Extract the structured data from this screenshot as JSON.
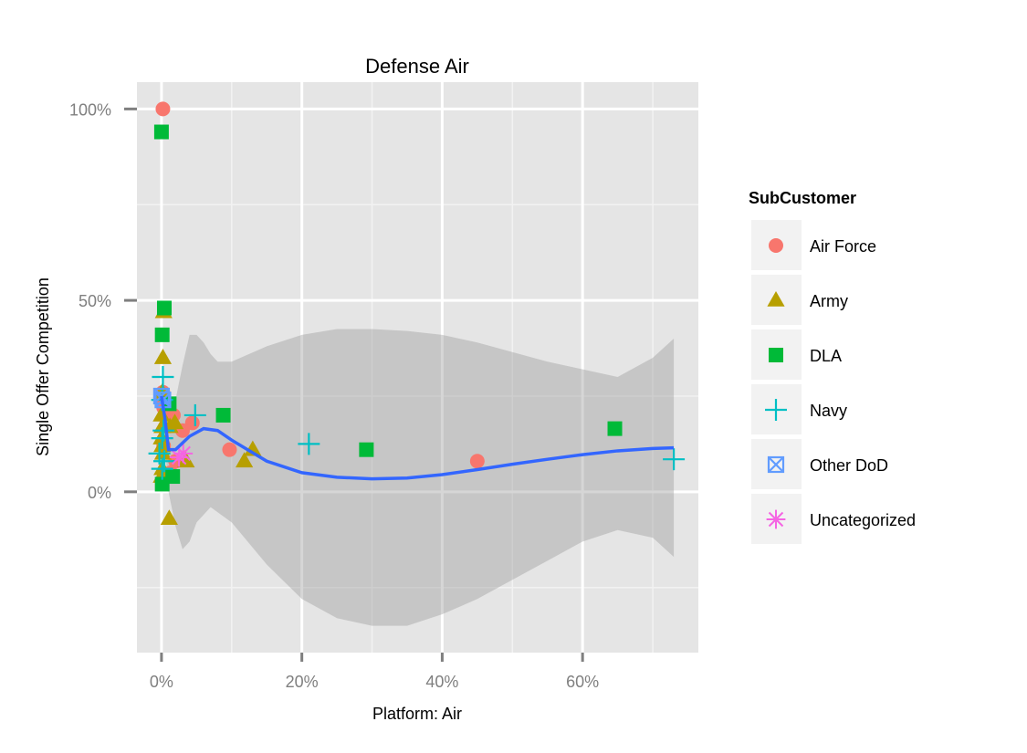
{
  "chart_data": {
    "type": "scatter",
    "title": "Defense Air",
    "xlabel": "Platform: Air",
    "ylabel": "Single Offer Competition",
    "xlim": [
      -0.035,
      0.765
    ],
    "ylim": [
      -0.42,
      1.07
    ],
    "x_ticks": [
      0,
      0.2,
      0.4,
      0.6
    ],
    "x_tick_labels": [
      "0%",
      "20%",
      "40%",
      "60%"
    ],
    "y_ticks": [
      0,
      0.5,
      1.0
    ],
    "y_tick_labels": [
      "0%",
      "50%",
      "100%"
    ],
    "grid": true,
    "legend_position": "right",
    "legend_title": "SubCustomer",
    "series": [
      {
        "name": "Air Force",
        "shape": "circle",
        "color": "#F8766D",
        "points": [
          {
            "x": 0.002,
            "y": 1.0
          },
          {
            "x": 0.002,
            "y": 0.26
          },
          {
            "x": 0.001,
            "y": 0.24
          },
          {
            "x": 0.003,
            "y": 0.22
          },
          {
            "x": 0.017,
            "y": 0.2
          },
          {
            "x": 0.044,
            "y": 0.18
          },
          {
            "x": 0.03,
            "y": 0.16
          },
          {
            "x": 0.003,
            "y": 0.12
          },
          {
            "x": 0.097,
            "y": 0.11
          },
          {
            "x": 0.02,
            "y": 0.08
          },
          {
            "x": 0.45,
            "y": 0.08
          },
          {
            "x": 0.013,
            "y": 0.05
          }
        ]
      },
      {
        "name": "Army",
        "shape": "triangle",
        "color": "#B79F00",
        "points": [
          {
            "x": 0.003,
            "y": 0.47
          },
          {
            "x": 0.002,
            "y": 0.35
          },
          {
            "x": 0.001,
            "y": 0.26
          },
          {
            "x": 0.0,
            "y": 0.2
          },
          {
            "x": 0.001,
            "y": 0.17
          },
          {
            "x": 0.0,
            "y": 0.14
          },
          {
            "x": 0.001,
            "y": 0.12
          },
          {
            "x": 0.002,
            "y": 0.1
          },
          {
            "x": 0.001,
            "y": 0.06
          },
          {
            "x": 0.0,
            "y": 0.04
          },
          {
            "x": 0.012,
            "y": 0.17
          },
          {
            "x": 0.019,
            "y": 0.18
          },
          {
            "x": 0.13,
            "y": 0.11
          },
          {
            "x": 0.118,
            "y": 0.08
          },
          {
            "x": 0.035,
            "y": 0.08
          },
          {
            "x": 0.011,
            "y": -0.07
          }
        ]
      },
      {
        "name": "DLA",
        "shape": "square",
        "color": "#00BA38",
        "points": [
          {
            "x": 0.0,
            "y": 0.94
          },
          {
            "x": 0.004,
            "y": 0.48
          },
          {
            "x": 0.001,
            "y": 0.41
          },
          {
            "x": 0.011,
            "y": 0.23
          },
          {
            "x": 0.088,
            "y": 0.2
          },
          {
            "x": 0.646,
            "y": 0.165
          },
          {
            "x": 0.292,
            "y": 0.11
          },
          {
            "x": 0.001,
            "y": 0.02
          },
          {
            "x": 0.016,
            "y": 0.04
          }
        ]
      },
      {
        "name": "Navy",
        "shape": "plus",
        "color": "#00BFC4",
        "points": [
          {
            "x": 0.002,
            "y": 0.3
          },
          {
            "x": 0.001,
            "y": 0.24
          },
          {
            "x": 0.048,
            "y": 0.2
          },
          {
            "x": 0.003,
            "y": 0.16
          },
          {
            "x": 0.001,
            "y": 0.14
          },
          {
            "x": 0.21,
            "y": 0.125
          },
          {
            "x": -0.003,
            "y": 0.1
          },
          {
            "x": 0.004,
            "y": 0.08
          },
          {
            "x": 0.001,
            "y": 0.06
          },
          {
            "x": 0.73,
            "y": 0.085
          }
        ]
      },
      {
        "name": "Other DoD",
        "shape": "square-x",
        "color": "#619CFF",
        "points": [
          {
            "x": 0.0,
            "y": 0.25
          },
          {
            "x": 0.002,
            "y": 0.24
          }
        ]
      },
      {
        "name": "Uncategorized",
        "shape": "asterisk",
        "color": "#F564E3",
        "points": [
          {
            "x": 0.031,
            "y": 0.1
          },
          {
            "x": 0.025,
            "y": 0.09
          }
        ]
      }
    ],
    "smooth_line": [
      {
        "x": 0.0,
        "y": 0.25
      },
      {
        "x": 0.005,
        "y": 0.19
      },
      {
        "x": 0.01,
        "y": 0.11
      },
      {
        "x": 0.02,
        "y": 0.11
      },
      {
        "x": 0.04,
        "y": 0.145
      },
      {
        "x": 0.06,
        "y": 0.165
      },
      {
        "x": 0.08,
        "y": 0.16
      },
      {
        "x": 0.1,
        "y": 0.135
      },
      {
        "x": 0.15,
        "y": 0.08
      },
      {
        "x": 0.2,
        "y": 0.05
      },
      {
        "x": 0.25,
        "y": 0.038
      },
      {
        "x": 0.3,
        "y": 0.034
      },
      {
        "x": 0.35,
        "y": 0.036
      },
      {
        "x": 0.4,
        "y": 0.045
      },
      {
        "x": 0.45,
        "y": 0.058
      },
      {
        "x": 0.5,
        "y": 0.072
      },
      {
        "x": 0.55,
        "y": 0.085
      },
      {
        "x": 0.6,
        "y": 0.097
      },
      {
        "x": 0.65,
        "y": 0.107
      },
      {
        "x": 0.7,
        "y": 0.113
      },
      {
        "x": 0.73,
        "y": 0.115
      }
    ],
    "confidence_band": {
      "upper": [
        {
          "x": 0.0,
          "y": 0.26
        },
        {
          "x": 0.01,
          "y": 0.22
        },
        {
          "x": 0.02,
          "y": 0.24
        },
        {
          "x": 0.03,
          "y": 0.33
        },
        {
          "x": 0.04,
          "y": 0.41
        },
        {
          "x": 0.05,
          "y": 0.41
        },
        {
          "x": 0.06,
          "y": 0.39
        },
        {
          "x": 0.07,
          "y": 0.36
        },
        {
          "x": 0.08,
          "y": 0.34
        },
        {
          "x": 0.1,
          "y": 0.34
        },
        {
          "x": 0.15,
          "y": 0.38
        },
        {
          "x": 0.2,
          "y": 0.41
        },
        {
          "x": 0.25,
          "y": 0.425
        },
        {
          "x": 0.3,
          "y": 0.425
        },
        {
          "x": 0.35,
          "y": 0.42
        },
        {
          "x": 0.4,
          "y": 0.41
        },
        {
          "x": 0.45,
          "y": 0.39
        },
        {
          "x": 0.5,
          "y": 0.365
        },
        {
          "x": 0.55,
          "y": 0.34
        },
        {
          "x": 0.6,
          "y": 0.32
        },
        {
          "x": 0.65,
          "y": 0.3
        },
        {
          "x": 0.7,
          "y": 0.35
        },
        {
          "x": 0.73,
          "y": 0.4
        }
      ],
      "lower": [
        {
          "x": 0.0,
          "y": 0.24
        },
        {
          "x": 0.01,
          "y": 0.0
        },
        {
          "x": 0.02,
          "y": -0.09
        },
        {
          "x": 0.03,
          "y": -0.15
        },
        {
          "x": 0.04,
          "y": -0.13
        },
        {
          "x": 0.05,
          "y": -0.08
        },
        {
          "x": 0.07,
          "y": -0.04
        },
        {
          "x": 0.1,
          "y": -0.08
        },
        {
          "x": 0.15,
          "y": -0.19
        },
        {
          "x": 0.2,
          "y": -0.28
        },
        {
          "x": 0.25,
          "y": -0.33
        },
        {
          "x": 0.3,
          "y": -0.35
        },
        {
          "x": 0.35,
          "y": -0.35
        },
        {
          "x": 0.4,
          "y": -0.32
        },
        {
          "x": 0.45,
          "y": -0.28
        },
        {
          "x": 0.5,
          "y": -0.23
        },
        {
          "x": 0.55,
          "y": -0.18
        },
        {
          "x": 0.6,
          "y": -0.13
        },
        {
          "x": 0.65,
          "y": -0.1
        },
        {
          "x": 0.7,
          "y": -0.12
        },
        {
          "x": 0.73,
          "y": -0.17
        }
      ]
    },
    "colors": {
      "panel_background": "#E5E5E5",
      "grid_major": "#FFFFFF",
      "grid_minor": "#F2F2F2",
      "smooth_line": "#3366FF",
      "band": "#999999",
      "legend_key_background": "#F2F2F2"
    }
  }
}
